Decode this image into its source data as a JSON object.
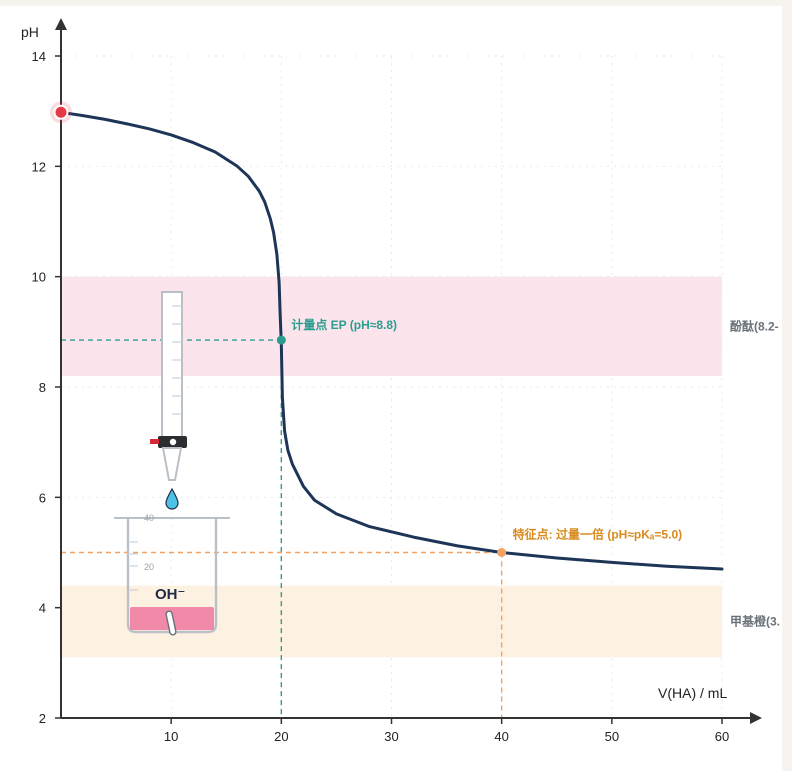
{
  "chart_data": {
    "type": "line",
    "title": "",
    "xlabel": "V(HA) / mL",
    "ylabel": "pH",
    "xlim": [
      0,
      60
    ],
    "ylim": [
      2,
      14
    ],
    "x_ticks": [
      10,
      20,
      30,
      40,
      50,
      60
    ],
    "y_ticks": [
      2,
      4,
      6,
      8,
      10,
      12,
      14
    ],
    "grid": true,
    "series": [
      {
        "x": [
          0,
          2,
          4,
          6,
          8,
          10,
          12,
          14,
          16,
          17,
          18,
          18.5,
          19,
          19.3,
          19.6,
          19.8,
          19.9,
          20,
          20.1,
          20.3,
          20.6,
          21,
          22,
          23,
          25,
          28,
          32,
          36,
          40,
          45,
          50,
          55,
          60
        ],
        "y": [
          12.98,
          12.92,
          12.85,
          12.77,
          12.68,
          12.57,
          12.43,
          12.26,
          12.0,
          11.82,
          11.55,
          11.35,
          11.05,
          10.8,
          10.4,
          9.9,
          9.3,
          8.8,
          7.8,
          7.2,
          6.85,
          6.6,
          6.2,
          5.95,
          5.7,
          5.47,
          5.28,
          5.12,
          5.0,
          4.9,
          4.82,
          4.75,
          4.7
        ]
      }
    ],
    "bands": [
      {
        "label": "酚酞(8.2-",
        "from": 8.2,
        "to": 10.0,
        "color": "#fbe4ec"
      },
      {
        "label": "甲基橙(3.",
        "from": 3.1,
        "to": 4.4,
        "color": "#fdf1e2"
      }
    ],
    "points": [
      {
        "name": "start",
        "x": 0,
        "y": 12.98,
        "color": "#e63946",
        "label": ""
      },
      {
        "name": "ep",
        "x": 20,
        "y": 8.85,
        "color": "#2a9d8f",
        "label": "计量点 EP (pH≈8.8)"
      },
      {
        "name": "half",
        "x": 40,
        "y": 5.0,
        "color": "#f4a261",
        "label": "特征点: 过量一倍 (pH≈pKₐ=5.0)"
      }
    ],
    "curve_color": "#1d3557"
  },
  "illustration": {
    "beaker_scale": [
      "40",
      "20"
    ],
    "ion_label": "OH⁻",
    "solution_color": "#f08aa8"
  }
}
